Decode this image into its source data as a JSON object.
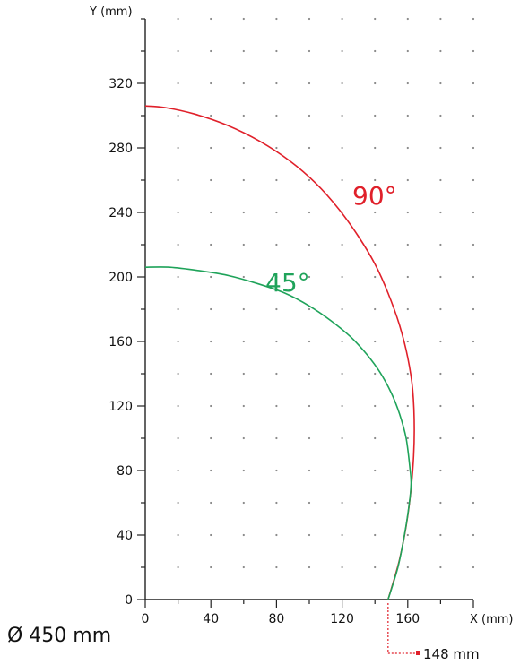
{
  "chart_data": {
    "type": "line",
    "xlabel": "X (mm)",
    "ylabel": "Y (mm)",
    "xlim": [
      0,
      200
    ],
    "ylim": [
      0,
      360
    ],
    "xticks": [
      0,
      40,
      80,
      120,
      160
    ],
    "yticks": [
      0,
      40,
      80,
      120,
      160,
      200,
      240,
      280,
      320
    ],
    "grid": "dotted",
    "series": [
      {
        "name": "90°",
        "color": "#e0202a",
        "points": [
          [
            148,
            0
          ],
          [
            155,
            25
          ],
          [
            160,
            52
          ],
          [
            163,
            80
          ],
          [
            164,
            105
          ],
          [
            163,
            130
          ],
          [
            160,
            150
          ],
          [
            155,
            170
          ],
          [
            148,
            190
          ],
          [
            140,
            208
          ],
          [
            130,
            225
          ],
          [
            118,
            242
          ],
          [
            104,
            258
          ],
          [
            88,
            272
          ],
          [
            70,
            284
          ],
          [
            50,
            294
          ],
          [
            30,
            301
          ],
          [
            12,
            305
          ],
          [
            0,
            306
          ]
        ]
      },
      {
        "name": "45°",
        "color": "#1fa35a",
        "points": [
          [
            148,
            0
          ],
          [
            154,
            20
          ],
          [
            158,
            40
          ],
          [
            161,
            60
          ],
          [
            162,
            72
          ],
          [
            161.5,
            80
          ],
          [
            159,
            100
          ],
          [
            155,
            115
          ],
          [
            150,
            128
          ],
          [
            143,
            141
          ],
          [
            135,
            152
          ],
          [
            125,
            163
          ],
          [
            113,
            173
          ],
          [
            100,
            182
          ],
          [
            85,
            190
          ],
          [
            68,
            196
          ],
          [
            50,
            201
          ],
          [
            32,
            204
          ],
          [
            15,
            206
          ],
          [
            0,
            206
          ]
        ]
      }
    ]
  },
  "annotations": {
    "diameter": "Ø 450 mm",
    "offset_marker": "148 mm",
    "offset_x": 148
  }
}
